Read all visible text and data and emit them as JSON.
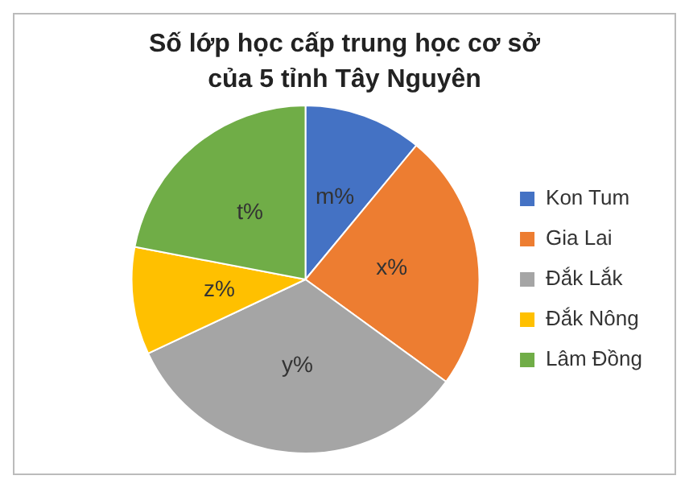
{
  "chart_data": {
    "type": "pie",
    "title": "Số lớp học cấp trung học cơ sở của 5 tỉnh Tây Nguyên",
    "categories": [
      "Kon Tum",
      "Gia Lai",
      "Đắk Lắk",
      "Đắk Nông",
      "Lâm Đồng"
    ],
    "values": [
      11,
      24,
      33,
      10,
      22
    ],
    "colors": [
      "#4472c4",
      "#ed7d31",
      "#a5a5a5",
      "#ffc000",
      "#70ad47"
    ],
    "value_labels": [
      "m%",
      "x%",
      "y%",
      "z%",
      "t%"
    ],
    "legend": "right"
  }
}
